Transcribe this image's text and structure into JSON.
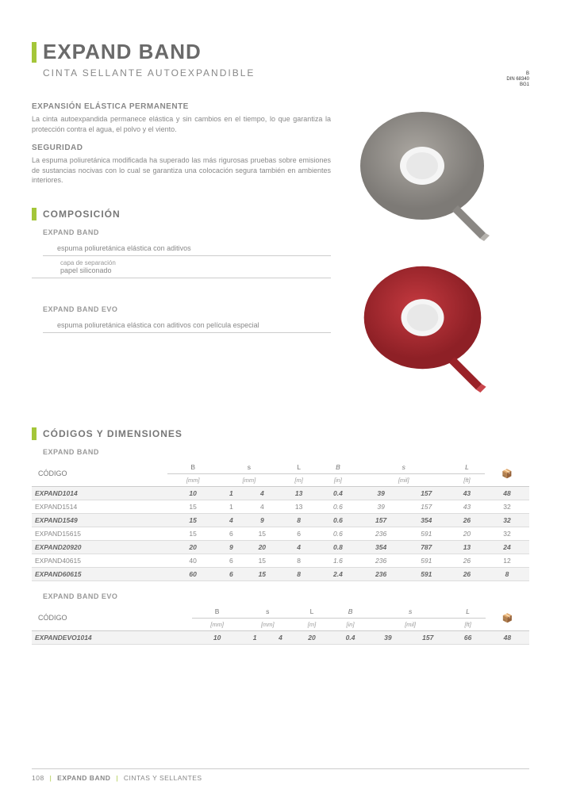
{
  "header": {
    "title": "EXPAND BAND",
    "subtitle": "CINTA SELLANTE AUTOEXPANDIBLE",
    "corner": [
      "B",
      "DIN 68340",
      "BG1"
    ]
  },
  "features": [
    {
      "title": "EXPANSIÓN ELÁSTICA PERMANENTE",
      "text": "La cinta autoexpandida permanece elástica y sin cambios en el tiempo, lo que garantiza la protección contra el agua, el polvo y el viento."
    },
    {
      "title": "SEGURIDAD",
      "text": "La espuma poliuretánica modificada ha superado las más rigurosas pruebas sobre emisiones de sustancias nocivas con lo cual se garantiza una colocación segura también en ambientes interiores."
    }
  ],
  "composition": {
    "heading": "COMPOSICIÓN",
    "group1": {
      "label": "EXPAND BAND",
      "lines": [
        "espuma poliuretánica elástica con aditivos",
        "capa de separación",
        "papel siliconado"
      ]
    },
    "group2": {
      "label": "EXPAND BAND EVO",
      "lines": [
        "espuma poliuretánica elástica con aditivos con película especial"
      ]
    }
  },
  "tables": {
    "heading": "CÓDIGOS Y DIMENSIONES",
    "table1": {
      "label": "EXPAND BAND",
      "code_header": "CÓDIGO",
      "cols_top": [
        "B",
        "s",
        "",
        "L",
        "B",
        "s",
        "",
        "L",
        ""
      ],
      "cols_unit": [
        "[mm]",
        "[mm]",
        "",
        "[m]",
        "[in]",
        "[mil]",
        "",
        "[ft]",
        ""
      ],
      "rows": [
        [
          "EXPAND1014",
          "10",
          "1",
          "4",
          "13",
          "0.4",
          "39",
          "157",
          "43",
          "48"
        ],
        [
          "EXPAND1514",
          "15",
          "1",
          "4",
          "13",
          "0.6",
          "39",
          "157",
          "43",
          "32"
        ],
        [
          "EXPAND1549",
          "15",
          "4",
          "9",
          "8",
          "0.6",
          "157",
          "354",
          "26",
          "32"
        ],
        [
          "EXPAND15615",
          "15",
          "6",
          "15",
          "6",
          "0.6",
          "236",
          "591",
          "20",
          "32"
        ],
        [
          "EXPAND20920",
          "20",
          "9",
          "20",
          "4",
          "0.8",
          "354",
          "787",
          "13",
          "24"
        ],
        [
          "EXPAND40615",
          "40",
          "6",
          "15",
          "8",
          "1.6",
          "236",
          "591",
          "26",
          "12"
        ],
        [
          "EXPAND60615",
          "60",
          "6",
          "15",
          "8",
          "2.4",
          "236",
          "591",
          "26",
          "8"
        ]
      ]
    },
    "table2": {
      "label": "EXPAND BAND EVO",
      "code_header": "CÓDIGO",
      "cols_top": [
        "B",
        "s",
        "",
        "L",
        "B",
        "s",
        "",
        "L",
        ""
      ],
      "cols_unit": [
        "[mm]",
        "[mm]",
        "",
        "[m]",
        "[in]",
        "[mil]",
        "",
        "[ft]",
        ""
      ],
      "rows": [
        [
          "EXPANDEVO1014",
          "10",
          "1",
          "4",
          "20",
          "0.4",
          "39",
          "157",
          "66",
          "48"
        ]
      ]
    }
  },
  "footer": {
    "page": "108",
    "product": "EXPAND BAND",
    "category": "CINTAS Y SELLANTES"
  },
  "tape_colors": {
    "grey": "#9a9691",
    "grey_dark": "#7d7a76",
    "red": "#b0282f",
    "red_dark": "#8e2026",
    "core": "#f5f5f5"
  }
}
